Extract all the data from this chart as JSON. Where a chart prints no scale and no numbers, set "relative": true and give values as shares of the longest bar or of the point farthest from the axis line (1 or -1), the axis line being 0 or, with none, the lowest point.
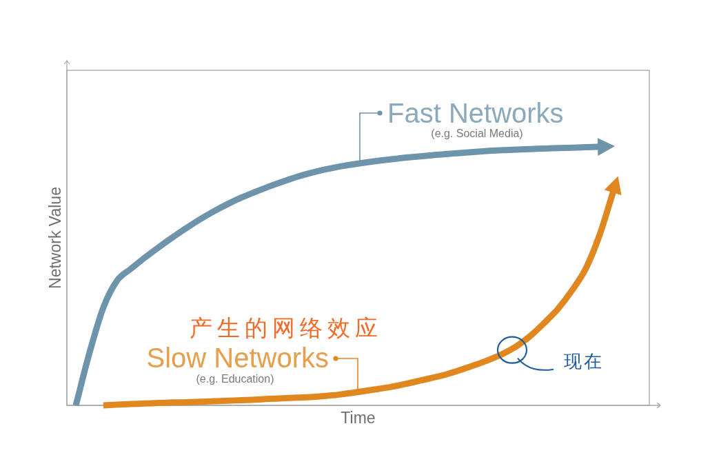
{
  "chart_data": {
    "type": "line",
    "relative": true,
    "xlabel": "Time",
    "ylabel": "Network Value",
    "categories": [
      null,
      null,
      null,
      null,
      null,
      null,
      null,
      null,
      null,
      null,
      null,
      null,
      null,
      null,
      null,
      null,
      null,
      null,
      null,
      null,
      null,
      null,
      null,
      null,
      null,
      null,
      null,
      null,
      null,
      null,
      null,
      null,
      null,
      null,
      null,
      null,
      null,
      null,
      null,
      null
    ],
    "series": [
      {
        "name": "Fast Networks",
        "color": "#6e94ab",
        "values": [
          0,
          0.205,
          0.379,
          0.483,
          0.528,
          0.571,
          0.611,
          0.649,
          0.685,
          0.719,
          0.75,
          0.778,
          0.803,
          0.825,
          0.846,
          0.865,
          0.883,
          0.898,
          0.911,
          0.922,
          0.931,
          0.939,
          0.946,
          0.952,
          0.958,
          0.963,
          0.968,
          0.972,
          0.976,
          0.98,
          0.984,
          0.987,
          0.989,
          0.991,
          0.993,
          0.995,
          0.996,
          0.998,
          1,
          null
        ]
      },
      {
        "name": "Slow Networks",
        "color": "#e0871f",
        "values": [
          null,
          null,
          0,
          0.003,
          0.005,
          0.007,
          0.009,
          0.011,
          0.012,
          0.014,
          0.016,
          0.018,
          0.02,
          0.022,
          0.025,
          0.027,
          0.03,
          0.032,
          0.036,
          0.041,
          0.048,
          0.056,
          0.064,
          0.073,
          0.084,
          0.096,
          0.108,
          0.122,
          0.139,
          0.157,
          0.177,
          0.2,
          0.23,
          0.27,
          0.32,
          0.375,
          0.445,
          0.53,
          0.66,
          0.83
        ]
      }
    ],
    "annotations": [
      "(e.g. Social Media)",
      "(e.g. Education)",
      "产生的网络效应",
      "现在"
    ]
  }
}
